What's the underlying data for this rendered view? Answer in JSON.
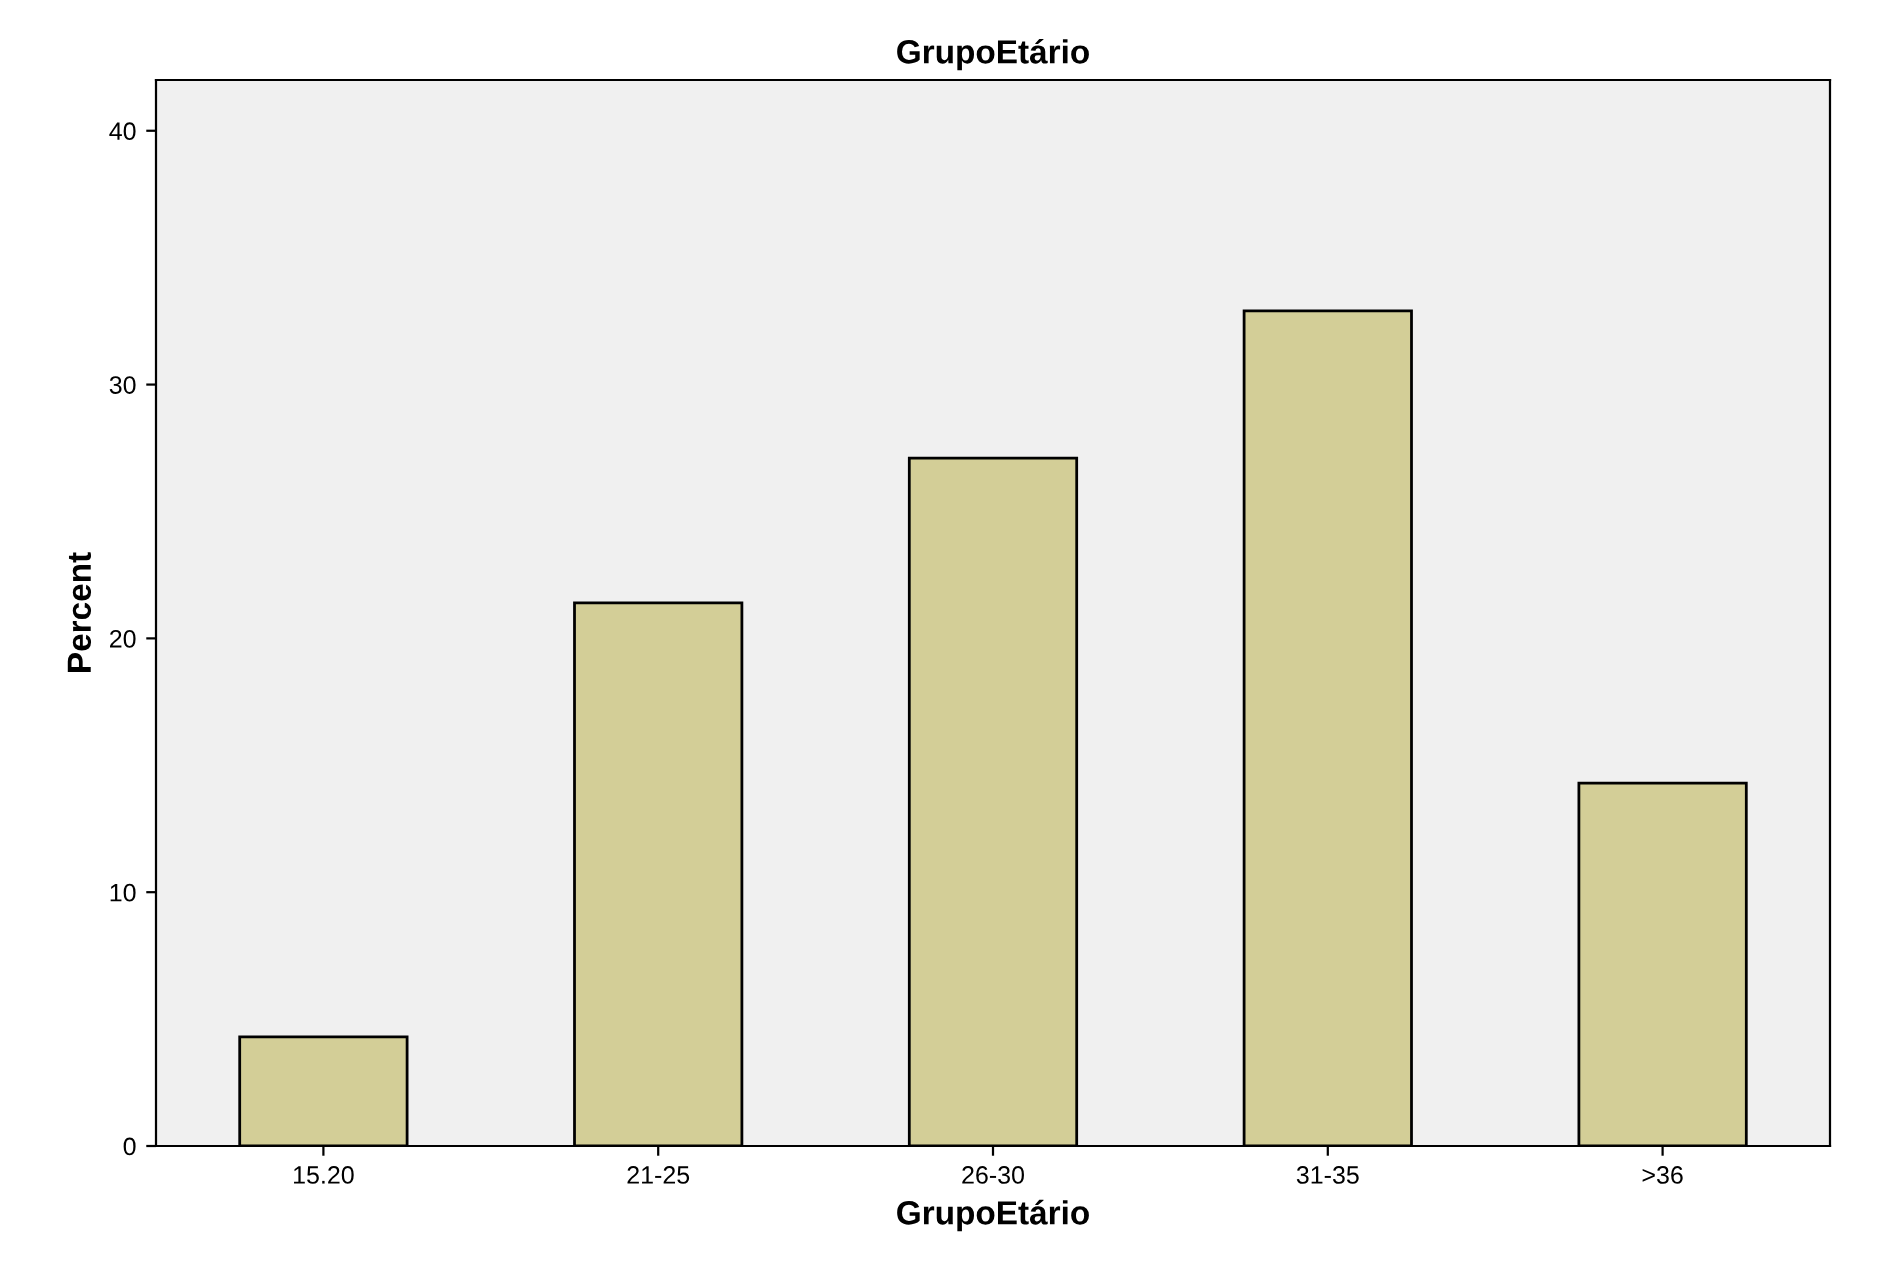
{
  "chart_data": {
    "type": "bar",
    "title": "GrupoEtário",
    "xlabel": "GrupoEtário",
    "ylabel": "Percent",
    "categories": [
      "15.20",
      "21-25",
      "26-30",
      "31-35",
      ">36"
    ],
    "values": [
      4.3,
      21.4,
      27.1,
      32.9,
      14.3
    ],
    "color": "#d3ce97",
    "ylim": [
      0,
      42
    ],
    "yticks": [
      0,
      10,
      20,
      30,
      40
    ],
    "grid": false,
    "legend": false
  }
}
